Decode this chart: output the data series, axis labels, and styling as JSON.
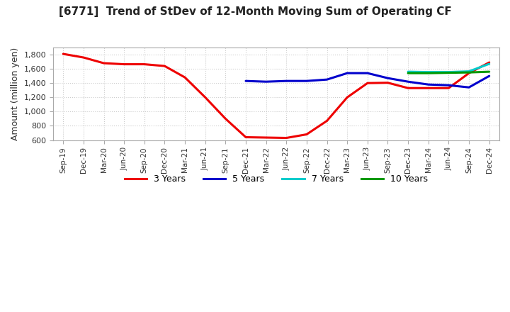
{
  "title": "[6771]  Trend of StDev of 12-Month Moving Sum of Operating CF",
  "ylabel": "Amount (million yen)",
  "ylim": [
    600,
    1900
  ],
  "yticks": [
    600,
    800,
    1000,
    1200,
    1400,
    1600,
    1800
  ],
  "background_color": "#ffffff",
  "grid_color": "#cccccc",
  "x_labels": [
    "Sep-19",
    "Dec-19",
    "Mar-20",
    "Jun-20",
    "Sep-20",
    "Dec-20",
    "Mar-21",
    "Jun-21",
    "Sep-21",
    "Dec-21",
    "Mar-22",
    "Jun-22",
    "Sep-22",
    "Dec-22",
    "Mar-23",
    "Jun-23",
    "Sep-23",
    "Dec-23",
    "Mar-24",
    "Jun-24",
    "Sep-24",
    "Dec-24"
  ],
  "series": {
    "3 Years": {
      "color": "#ee0000",
      "linewidth": 2.2,
      "data_x": [
        0,
        1,
        2,
        3,
        4,
        5,
        6,
        7,
        8,
        9,
        10,
        11,
        12,
        13,
        14,
        15,
        16,
        17,
        18,
        19,
        20,
        21
      ],
      "data_y": [
        1810,
        1760,
        1680,
        1665,
        1665,
        1640,
        1480,
        1200,
        900,
        640,
        635,
        630,
        680,
        870,
        1200,
        1400,
        1405,
        1330,
        1330,
        1330,
        1540,
        1690
      ]
    },
    "5 Years": {
      "color": "#0000cc",
      "linewidth": 2.2,
      "data_x": [
        9,
        10,
        11,
        12,
        13,
        14,
        15,
        16,
        17,
        18,
        19,
        20,
        21
      ],
      "data_y": [
        1430,
        1420,
        1430,
        1430,
        1450,
        1540,
        1540,
        1470,
        1420,
        1380,
        1370,
        1340,
        1500
      ]
    },
    "7 Years": {
      "color": "#00cccc",
      "linewidth": 2.2,
      "data_x": [
        17,
        18,
        19,
        20,
        21
      ],
      "data_y": [
        1560,
        1555,
        1555,
        1565,
        1670
      ]
    },
    "10 Years": {
      "color": "#009900",
      "linewidth": 2.2,
      "data_x": [
        17,
        18,
        19,
        20,
        21
      ],
      "data_y": [
        1540,
        1540,
        1545,
        1550,
        1560
      ]
    }
  },
  "legend_labels": [
    "3 Years",
    "5 Years",
    "7 Years",
    "10 Years"
  ],
  "legend_colors": [
    "#ee0000",
    "#0000cc",
    "#00cccc",
    "#009900"
  ]
}
